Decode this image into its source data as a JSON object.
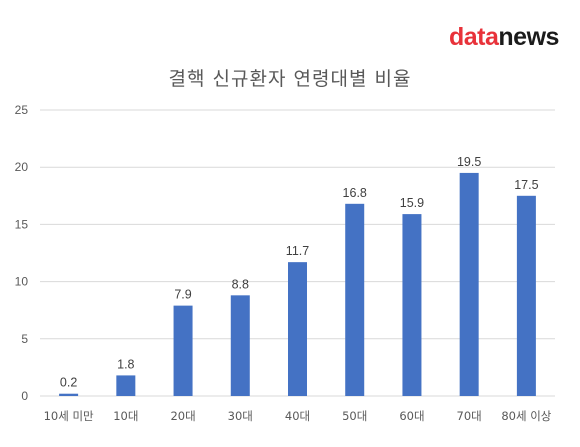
{
  "logo": {
    "part1": "data",
    "part2": "news"
  },
  "chart_data": {
    "type": "bar",
    "title": "결핵 신규환자 연령대별 비율",
    "xlabel": "",
    "ylabel": "",
    "categories": [
      "10세 미만",
      "10대",
      "20대",
      "30대",
      "40대",
      "50대",
      "60대",
      "70대",
      "80세 이상"
    ],
    "values": [
      0.2,
      1.8,
      7.9,
      8.8,
      11.7,
      16.8,
      15.9,
      19.5,
      17.5
    ],
    "value_labels": [
      "0.2",
      "1.8",
      "7.9",
      "8.8",
      "11.7",
      "16.8",
      "15.9",
      "19.5",
      "17.5"
    ],
    "ylim": [
      0,
      25
    ],
    "yticks": [
      0,
      5,
      10,
      15,
      20,
      25
    ],
    "grid": true,
    "legend": "none",
    "bar_color": "#4472c4",
    "grid_color": "#d9d9d9"
  }
}
